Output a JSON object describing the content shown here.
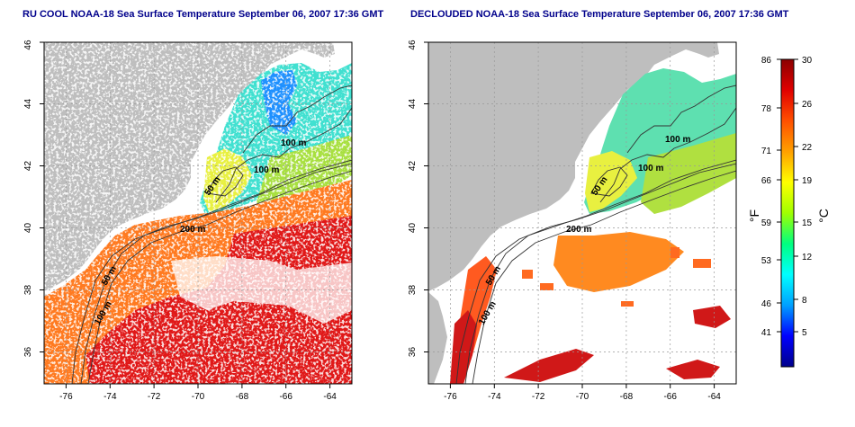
{
  "panels": [
    {
      "title": "RU COOL NOAA-18 Sea Surface Temperature September 06, 2007 17:36 GMT",
      "x_ticks": [
        "-76",
        "-74",
        "-72",
        "-70",
        "-68",
        "-66",
        "-64"
      ],
      "y_ticks": [
        "36",
        "38",
        "40",
        "42",
        "44",
        "46"
      ],
      "contour_labels": [
        "100 m",
        "100 m",
        "50 m",
        "200 m",
        "50 m",
        "100 m"
      ]
    },
    {
      "title": "DECLOUDED NOAA-18 Sea Surface Temperature September 06, 2007 17:36 GMT",
      "x_ticks": [
        "-76",
        "-74",
        "-72",
        "-70",
        "-68",
        "-66",
        "-64"
      ],
      "y_ticks": [
        "36",
        "38",
        "40",
        "42",
        "44",
        "46"
      ],
      "contour_labels": [
        "100 m",
        "100 m",
        "50 m",
        "200 m",
        "50 m",
        "100 m"
      ]
    }
  ],
  "colorbar": {
    "fahrenheit_unit": "°F",
    "celsius_unit": "°C",
    "fahrenheit_ticks": [
      "86",
      "78",
      "71",
      "66",
      "59",
      "53",
      "46",
      "41"
    ],
    "celsius_ticks": [
      "30",
      "26",
      "22",
      "19",
      "15",
      "12",
      "8",
      "5"
    ],
    "colors": [
      "#00008b",
      "#0000ff",
      "#00a0ff",
      "#00ffff",
      "#00ff80",
      "#a0ff00",
      "#ffff00",
      "#ffa000",
      "#ff5000",
      "#e00000",
      "#8b0000"
    ]
  },
  "map_colors": {
    "land": "#bebebe",
    "cloud": "#ffffff",
    "contour": "#333333",
    "grid": "#999999"
  }
}
